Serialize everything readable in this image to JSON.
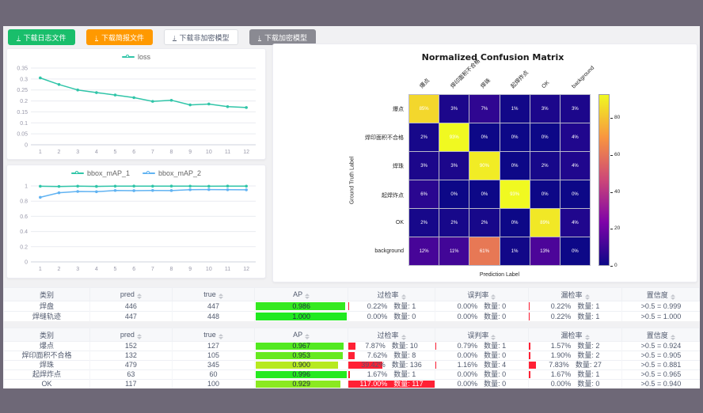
{
  "frame": {
    "outer_bg": "#6e6877",
    "content_bg": "#f1f1f3"
  },
  "toolbar": {
    "download_icon": "↓",
    "buttons": [
      {
        "label": "下载日志文件",
        "variant": "green",
        "color": "#19be6b"
      },
      {
        "label": "下载简报文件",
        "variant": "orange",
        "color": "#ff9900"
      },
      {
        "label": "下载非加密模型",
        "variant": "white",
        "color": "#ffffff"
      },
      {
        "label": "下载加密模型",
        "variant": "gray",
        "color": "#8a8a92"
      }
    ]
  },
  "chart_data": [
    {
      "type": "line",
      "title": "",
      "legend": [
        "loss"
      ],
      "legend_position": "top",
      "x": [
        1,
        2,
        3,
        4,
        5,
        6,
        7,
        8,
        9,
        10,
        11,
        12
      ],
      "series": [
        {
          "name": "loss",
          "color": "#30c5a8",
          "values": [
            0.305,
            0.275,
            0.25,
            0.238,
            0.227,
            0.215,
            0.198,
            0.203,
            0.182,
            0.186,
            0.174,
            0.17
          ]
        }
      ],
      "ylim": [
        0,
        0.35
      ],
      "yticks": [
        0,
        0.05,
        0.1,
        0.15,
        0.2,
        0.25,
        0.3,
        0.35
      ],
      "grid": true
    },
    {
      "type": "line",
      "title": "",
      "legend": [
        "bbox_mAP_1",
        "bbox_mAP_2"
      ],
      "legend_position": "top",
      "x": [
        1,
        2,
        3,
        4,
        5,
        6,
        7,
        8,
        9,
        10,
        11,
        12
      ],
      "series": [
        {
          "name": "bbox_mAP_1",
          "color": "#30c5a8",
          "values": [
            0.996,
            0.993,
            0.997,
            0.994,
            0.997,
            0.998,
            0.997,
            0.998,
            0.997,
            0.996,
            0.998,
            0.997
          ]
        },
        {
          "name": "bbox_mAP_2",
          "color": "#61b3f2",
          "values": [
            0.85,
            0.91,
            0.927,
            0.924,
            0.94,
            0.938,
            0.941,
            0.939,
            0.951,
            0.952,
            0.95,
            0.949
          ]
        }
      ],
      "ylim": [
        0,
        1
      ],
      "yticks": [
        0,
        0.2,
        0.4,
        0.6,
        0.8,
        1
      ],
      "grid": true
    },
    {
      "type": "heatmap",
      "title": "Normalized Confusion Matrix",
      "xlabel": "Prediction Label",
      "ylabel": "Ground Truth Label",
      "labels": [
        "爆点",
        "焊印面积不合格",
        "焊珠",
        "起焊炸点",
        "OK",
        "background"
      ],
      "unit": "%",
      "matrix": [
        [
          85,
          3,
          7,
          1,
          3,
          3
        ],
        [
          2,
          93,
          0,
          0,
          0,
          4
        ],
        [
          3,
          3,
          90,
          0,
          2,
          4
        ],
        [
          6,
          0,
          0,
          93,
          0,
          0
        ],
        [
          2,
          2,
          2,
          0,
          89,
          4
        ],
        [
          12,
          11,
          61,
          1,
          13,
          0
        ]
      ],
      "colormap": "plasma",
      "colorbar": {
        "min": 0,
        "max": 93,
        "ticks": [
          0,
          20,
          40,
          60,
          80
        ]
      }
    }
  ],
  "tables": [
    {
      "headers": [
        {
          "label": "类别",
          "sortable": false
        },
        {
          "label": "pred",
          "sortable": true
        },
        {
          "label": "true",
          "sortable": true
        },
        {
          "label": "AP",
          "sortable": true
        },
        {
          "label": "过检率",
          "sortable": true
        },
        {
          "label": "误判率",
          "sortable": true
        },
        {
          "label": "漏检率",
          "sortable": true
        },
        {
          "label": "置信度",
          "sortable": true
        }
      ],
      "rows": [
        {
          "category": "焊盘",
          "pred": "446",
          "true": "447",
          "ap": 0.986,
          "ap_label": "0.986",
          "over": {
            "pct": 0.22,
            "label": "0.22%",
            "count": "数量: 1"
          },
          "mis": {
            "pct": 0.0,
            "label": "0.00%",
            "count": "数量: 0"
          },
          "miss": {
            "pct": 0.22,
            "label": "0.22%",
            "count": "数量: 1"
          },
          "conf": ">0.5 = 0.999"
        },
        {
          "category": "焊缝轨迹",
          "pred": "447",
          "true": "448",
          "ap": 1.0,
          "ap_label": "1.000",
          "over": {
            "pct": 0.0,
            "label": "0.00%",
            "count": "数量: 0"
          },
          "mis": {
            "pct": 0.0,
            "label": "0.00%",
            "count": "数量: 0"
          },
          "miss": {
            "pct": 0.22,
            "label": "0.22%",
            "count": "数量: 1"
          },
          "conf": ">0.5 = 1.000"
        }
      ]
    },
    {
      "headers": [
        {
          "label": "类别",
          "sortable": false
        },
        {
          "label": "pred",
          "sortable": true
        },
        {
          "label": "true",
          "sortable": true
        },
        {
          "label": "AP",
          "sortable": true
        },
        {
          "label": "过检率",
          "sortable": true
        },
        {
          "label": "误判率",
          "sortable": true
        },
        {
          "label": "漏检率",
          "sortable": true
        },
        {
          "label": "置信度",
          "sortable": true
        }
      ],
      "rows": [
        {
          "category": "爆点",
          "pred": "152",
          "true": "127",
          "ap": 0.967,
          "ap_label": "0.967",
          "over": {
            "pct": 7.87,
            "label": "7.87%",
            "count": "数量: 10"
          },
          "mis": {
            "pct": 0.79,
            "label": "0.79%",
            "count": "数量: 1"
          },
          "miss": {
            "pct": 1.57,
            "label": "1.57%",
            "count": "数量: 2"
          },
          "conf": ">0.5 = 0.924"
        },
        {
          "category": "焊印面积不合格",
          "pred": "132",
          "true": "105",
          "ap": 0.953,
          "ap_label": "0.953",
          "over": {
            "pct": 7.62,
            "label": "7.62%",
            "count": "数量: 8"
          },
          "mis": {
            "pct": 0.0,
            "label": "0.00%",
            "count": "数量: 0"
          },
          "miss": {
            "pct": 1.9,
            "label": "1.90%",
            "count": "数量: 2"
          },
          "conf": ">0.5 = 0.905"
        },
        {
          "category": "焊珠",
          "pred": "479",
          "true": "345",
          "ap": 0.9,
          "ap_label": "0.900",
          "over": {
            "pct": 39.42,
            "label": "39.42%",
            "count": "数量: 136"
          },
          "mis": {
            "pct": 1.16,
            "label": "1.16%",
            "count": "数量: 4"
          },
          "miss": {
            "pct": 7.83,
            "label": "7.83%",
            "count": "数量: 27"
          },
          "conf": ">0.5 = 0.881"
        },
        {
          "category": "起焊炸点",
          "pred": "63",
          "true": "60",
          "ap": 0.996,
          "ap_label": "0.996",
          "over": {
            "pct": 1.67,
            "label": "1.67%",
            "count": "数量: 1"
          },
          "mis": {
            "pct": 0.0,
            "label": "0.00%",
            "count": "数量: 0"
          },
          "miss": {
            "pct": 1.67,
            "label": "1.67%",
            "count": "数量: 1"
          },
          "conf": ">0.5 = 0.965"
        },
        {
          "category": "OK",
          "pred": "117",
          "true": "100",
          "ap": 0.929,
          "ap_label": "0.929",
          "over": {
            "pct": 117.0,
            "label": "117.00%",
            "count": "数量: 117"
          },
          "mis": {
            "pct": 0.0,
            "label": "0.00%",
            "count": "数量: 0"
          },
          "miss": {
            "pct": 0.0,
            "label": "0.00%",
            "count": "数量: 0"
          },
          "conf": ">0.5 = 0.940"
        }
      ]
    }
  ]
}
